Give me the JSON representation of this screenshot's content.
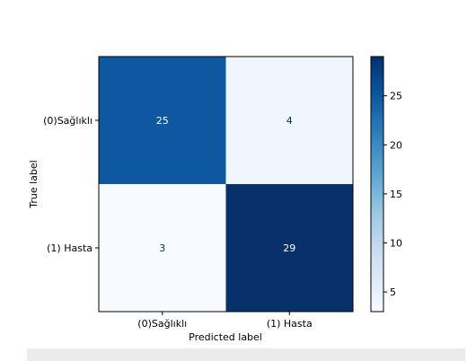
{
  "chart_data": {
    "type": "heatmap",
    "xlabel": "Predicted label",
    "ylabel": "True label",
    "x_tick_labels": [
      "(0)Sağlıklı",
      "(1) Hasta"
    ],
    "y_tick_labels": [
      "(0)Sağlıklı",
      "(1) Hasta"
    ],
    "matrix": [
      [
        25,
        4
      ],
      [
        3,
        29
      ]
    ],
    "colorbar": {
      "min": 3,
      "max": 29,
      "ticks": [
        "5",
        "10",
        "15",
        "20",
        "25"
      ],
      "colormap": "Blues"
    },
    "text_colors": {
      "dark": "#ffffff",
      "light": "#08306b"
    }
  }
}
